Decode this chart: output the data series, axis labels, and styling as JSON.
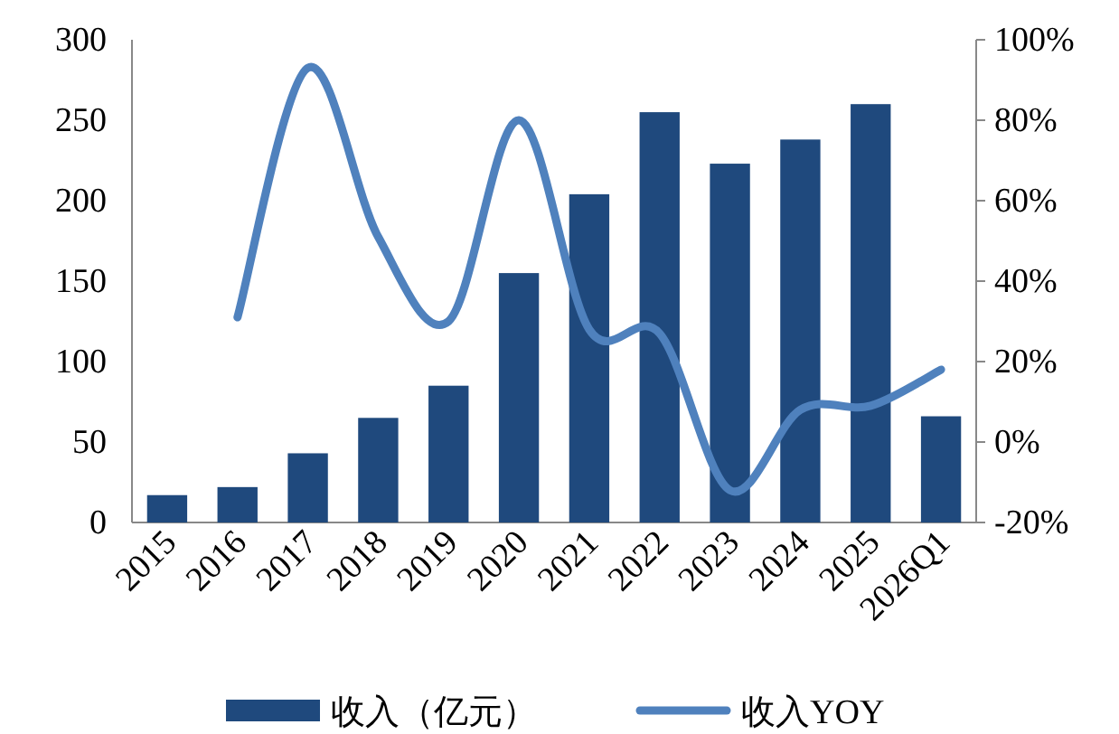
{
  "chart_data": {
    "type": "bar",
    "categories": [
      "2015",
      "2016",
      "2017",
      "2018",
      "2019",
      "2020",
      "2021",
      "2022",
      "2023",
      "2024",
      "2025",
      "2026Q1"
    ],
    "series": [
      {
        "name": "收入（亿元）",
        "color": "#1f497d",
        "values": [
          17,
          22,
          43,
          65,
          85,
          155,
          204,
          255,
          223,
          238,
          260,
          66
        ]
      },
      {
        "name": "收入YOY",
        "type": "line",
        "axis": "y2",
        "color": "#4f81bd",
        "values": [
          null,
          31,
          93,
          51,
          30,
          80,
          28,
          27,
          -12,
          8,
          9,
          18
        ]
      }
    ],
    "ylim": [
      0,
      300
    ],
    "yticks": [
      0,
      50,
      100,
      150,
      200,
      250,
      300
    ],
    "y2lim": [
      -20,
      100
    ],
    "y2ticks": [
      {
        "value": -20,
        "label": "-20%"
      },
      {
        "value": 0,
        "label": "0%"
      },
      {
        "value": 20,
        "label": "20%"
      },
      {
        "value": 40,
        "label": "40%"
      },
      {
        "value": 60,
        "label": "60%"
      },
      {
        "value": 80,
        "label": "80%"
      },
      {
        "value": 100,
        "label": "100%"
      }
    ],
    "legend": "bottom"
  }
}
